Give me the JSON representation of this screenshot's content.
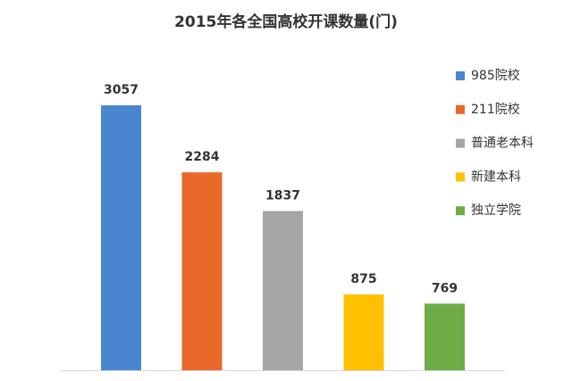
{
  "chart_data": {
    "type": "bar",
    "title": "2015年各全国高校开课数量(门)",
    "categories": [
      null
    ],
    "series": [
      {
        "name": "985院校",
        "color": "#4a86d0",
        "values": [
          3057
        ]
      },
      {
        "name": "211院校",
        "color": "#e8692a",
        "values": [
          2284
        ]
      },
      {
        "name": "普通老本科",
        "color": "#a5a5a5",
        "values": [
          1837
        ]
      },
      {
        "name": "新建本科",
        "color": "#ffc000",
        "values": [
          875
        ]
      },
      {
        "name": "独立学院",
        "color": "#70ad47",
        "values": [
          769
        ]
      }
    ],
    "ylim": [
      0,
      3500
    ],
    "grid": false,
    "legend": "right"
  }
}
